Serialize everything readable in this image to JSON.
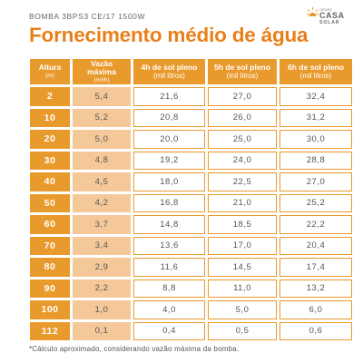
{
  "header": {
    "product": "BOMBA 3BPS3 CE/17 1500W",
    "logo_small": "GRUPO",
    "logo_big": "CASA",
    "logo_sub": "SOLAR",
    "title": "Fornecimento médio de água"
  },
  "table": {
    "headers": [
      {
        "main": "Altura",
        "sub": "(m)"
      },
      {
        "main": "Vazão máxima",
        "sub": "(m³/h)"
      },
      {
        "main": "4h de sol pleno",
        "sub": "(mil litros)"
      },
      {
        "main": "5h de sol pleno",
        "sub": "(mil litros)"
      },
      {
        "main": "6h de sol pleno",
        "sub": "(mil litros)"
      }
    ],
    "rows": [
      {
        "h": "2",
        "v": "5,4",
        "c4": "21,6",
        "c5": "27,0",
        "c6": "32,4"
      },
      {
        "h": "10",
        "v": "5,2",
        "c4": "20,8",
        "c5": "26,0",
        "c6": "31,2"
      },
      {
        "h": "20",
        "v": "5,0",
        "c4": "20,0",
        "c5": "25,0",
        "c6": "30,0"
      },
      {
        "h": "30",
        "v": "4,8",
        "c4": "19,2",
        "c5": "24,0",
        "c6": "28,8"
      },
      {
        "h": "40",
        "v": "4,5",
        "c4": "18,0",
        "c5": "22,5",
        "c6": "27,0"
      },
      {
        "h": "50",
        "v": "4,2",
        "c4": "16,8",
        "c5": "21,0",
        "c6": "25,2"
      },
      {
        "h": "60",
        "v": "3,7",
        "c4": "14,8",
        "c5": "18,5",
        "c6": "22,2"
      },
      {
        "h": "70",
        "v": "3,4",
        "c4": "13,6",
        "c5": "17,0",
        "c6": "20,4"
      },
      {
        "h": "80",
        "v": "2,9",
        "c4": "11,6",
        "c5": "14,5",
        "c6": "17,4"
      },
      {
        "h": "90",
        "v": "2,2",
        "c4": "8,8",
        "c5": "11,0",
        "c6": "13,2"
      },
      {
        "h": "100",
        "v": "1,0",
        "c4": "4,0",
        "c5": "5,0",
        "c6": "6,0"
      },
      {
        "h": "112",
        "v": "0,1",
        "c4": "0,4",
        "c5": "0,5",
        "c6": "0,6"
      }
    ]
  },
  "footnote": "*Cálculo aproximado, considerando vazão máxima da bomba.",
  "colors": {
    "accent": "#E8801A",
    "header_fill": "#E99A2C",
    "flow_fill": "#F5C89A",
    "text": "#555555"
  },
  "icons": {
    "logo": "sun-icon"
  }
}
